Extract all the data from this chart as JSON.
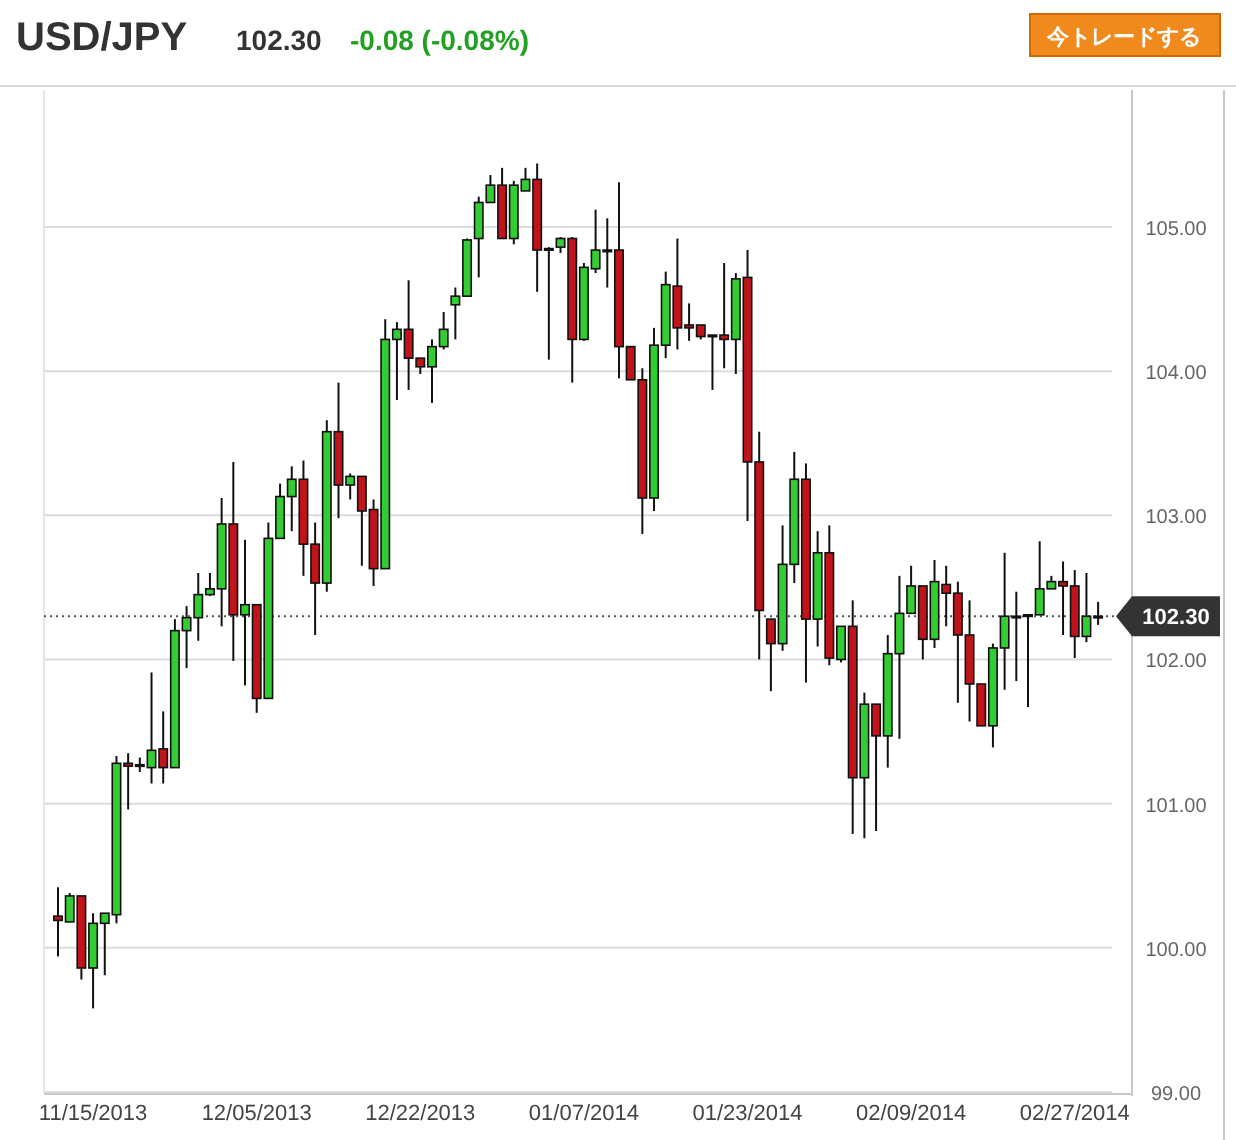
{
  "chart_data": {
    "type": "candlestick",
    "title": "USD/JPY",
    "subtitle": "102.30",
    "annotations": [
      "-0.08 (-0.08%)",
      "今トレードする"
    ],
    "categories": [
      null,
      null,
      null,
      "11/15/2013",
      null,
      null,
      null,
      null,
      null,
      null,
      null,
      null,
      null,
      null,
      null,
      null,
      null,
      "12/05/2013",
      null,
      null,
      null,
      null,
      null,
      null,
      null,
      null,
      null,
      null,
      null,
      null,
      null,
      "12/22/2013",
      null,
      null,
      null,
      null,
      null,
      null,
      null,
      null,
      null,
      null,
      null,
      null,
      null,
      "01/07/2014",
      null,
      null,
      null,
      null,
      null,
      null,
      null,
      null,
      null,
      null,
      null,
      null,
      null,
      "01/23/2014",
      null,
      null,
      null,
      null,
      null,
      null,
      null,
      null,
      null,
      null,
      null,
      null,
      null,
      "02/09/2014",
      null,
      null,
      null,
      null,
      null,
      null,
      null,
      null,
      null,
      null,
      null,
      null,
      null,
      "02/27/2014",
      null,
      null
    ],
    "ohlc": [
      [
        100.22,
        100.42,
        99.94,
        100.19
      ],
      [
        100.18,
        100.38,
        100.18,
        100.36
      ],
      [
        100.36,
        100.36,
        99.78,
        99.86
      ],
      [
        99.86,
        100.24,
        99.58,
        100.17
      ],
      [
        100.17,
        100.24,
        99.81,
        100.24
      ],
      [
        100.23,
        101.33,
        100.17,
        101.28
      ],
      [
        101.28,
        101.35,
        100.96,
        101.26
      ],
      [
        101.26,
        101.32,
        101.22,
        101.27
      ],
      [
        101.25,
        101.91,
        101.14,
        101.37
      ],
      [
        101.38,
        101.64,
        101.14,
        101.25
      ],
      [
        101.25,
        102.28,
        101.25,
        102.2
      ],
      [
        102.2,
        102.37,
        101.94,
        102.29
      ],
      [
        102.29,
        102.6,
        102.13,
        102.45
      ],
      [
        102.45,
        102.6,
        102.44,
        102.49
      ],
      [
        102.49,
        103.12,
        102.23,
        102.94
      ],
      [
        102.94,
        103.37,
        101.99,
        102.31
      ],
      [
        102.31,
        102.83,
        101.82,
        102.38
      ],
      [
        102.38,
        102.38,
        101.63,
        101.73
      ],
      [
        101.73,
        102.95,
        101.73,
        102.84
      ],
      [
        102.84,
        103.22,
        102.84,
        103.13
      ],
      [
        103.13,
        103.34,
        102.89,
        103.25
      ],
      [
        103.25,
        103.38,
        102.58,
        102.8
      ],
      [
        102.8,
        102.95,
        102.17,
        102.53
      ],
      [
        102.53,
        103.66,
        102.47,
        103.58
      ],
      [
        103.58,
        103.92,
        102.98,
        103.21
      ],
      [
        103.21,
        103.29,
        103.11,
        103.27
      ],
      [
        103.27,
        103.27,
        102.65,
        103.03
      ],
      [
        103.04,
        103.11,
        102.51,
        102.63
      ],
      [
        102.63,
        104.36,
        102.63,
        104.22
      ],
      [
        104.22,
        104.34,
        103.8,
        104.29
      ],
      [
        104.29,
        104.63,
        103.87,
        104.09
      ],
      [
        104.09,
        104.09,
        103.98,
        104.03
      ],
      [
        104.03,
        104.22,
        103.78,
        104.17
      ],
      [
        104.17,
        104.41,
        104.15,
        104.29
      ],
      [
        104.46,
        104.58,
        104.22,
        104.52
      ],
      [
        104.52,
        104.92,
        104.52,
        104.91
      ],
      [
        104.92,
        105.21,
        104.65,
        105.17
      ],
      [
        105.17,
        105.36,
        105.17,
        105.29
      ],
      [
        105.29,
        105.41,
        104.92,
        104.92
      ],
      [
        104.92,
        105.32,
        104.88,
        105.29
      ],
      [
        105.25,
        105.41,
        105.25,
        105.33
      ],
      [
        105.33,
        105.44,
        104.55,
        104.84
      ],
      [
        104.84,
        104.86,
        104.08,
        104.85
      ],
      [
        104.86,
        104.93,
        104.82,
        104.92
      ],
      [
        104.92,
        104.93,
        103.92,
        104.22
      ],
      [
        104.22,
        104.75,
        104.21,
        104.72
      ],
      [
        104.71,
        105.12,
        104.68,
        104.84
      ],
      [
        104.84,
        105.06,
        104.58,
        104.84
      ],
      [
        104.84,
        105.31,
        103.95,
        104.17
      ],
      [
        104.17,
        104.17,
        103.94,
        103.94
      ],
      [
        103.94,
        104.02,
        102.87,
        103.12
      ],
      [
        103.12,
        104.3,
        103.03,
        104.18
      ],
      [
        104.18,
        104.69,
        104.09,
        104.6
      ],
      [
        104.59,
        104.92,
        104.15,
        104.3
      ],
      [
        104.32,
        104.47,
        104.21,
        104.3
      ],
      [
        104.32,
        104.32,
        104.22,
        104.24
      ],
      [
        104.25,
        104.25,
        103.87,
        104.25
      ],
      [
        104.25,
        104.75,
        104.02,
        104.22
      ],
      [
        104.22,
        104.68,
        103.98,
        104.64
      ],
      [
        104.65,
        104.84,
        102.96,
        103.37
      ],
      [
        103.37,
        103.58,
        102.0,
        102.34
      ],
      [
        102.28,
        102.28,
        101.78,
        102.11
      ],
      [
        102.11,
        102.93,
        102.06,
        102.66
      ],
      [
        102.66,
        103.44,
        102.53,
        103.25
      ],
      [
        103.25,
        103.36,
        101.84,
        102.28
      ],
      [
        102.28,
        102.89,
        102.09,
        102.74
      ],
      [
        102.74,
        102.93,
        101.96,
        102.01
      ],
      [
        102.0,
        102.23,
        101.98,
        102.23
      ],
      [
        102.23,
        102.41,
        100.79,
        101.18
      ],
      [
        101.18,
        101.77,
        100.76,
        101.69
      ],
      [
        101.69,
        101.69,
        100.81,
        101.47
      ],
      [
        101.47,
        102.17,
        101.25,
        102.04
      ],
      [
        102.04,
        102.58,
        101.45,
        102.32
      ],
      [
        102.32,
        102.65,
        102.32,
        102.51
      ],
      [
        102.51,
        102.51,
        102.0,
        102.14
      ],
      [
        102.14,
        102.69,
        102.08,
        102.54
      ],
      [
        102.52,
        102.65,
        102.23,
        102.46
      ],
      [
        102.46,
        102.54,
        101.7,
        102.17
      ],
      [
        102.17,
        102.41,
        101.57,
        101.83
      ],
      [
        101.83,
        101.83,
        101.54,
        101.54
      ],
      [
        101.54,
        102.11,
        101.39,
        102.08
      ],
      [
        102.08,
        102.74,
        101.79,
        102.3
      ],
      [
        102.3,
        102.47,
        101.85,
        102.3
      ],
      [
        102.31,
        102.31,
        101.67,
        102.31
      ],
      [
        102.31,
        102.82,
        102.31,
        102.49
      ],
      [
        102.49,
        102.58,
        102.49,
        102.54
      ],
      [
        102.54,
        102.68,
        102.17,
        102.51
      ],
      [
        102.51,
        102.62,
        102.01,
        102.16
      ],
      [
        102.16,
        102.6,
        102.12,
        102.3
      ],
      [
        102.3,
        102.4,
        102.24,
        102.3
      ]
    ],
    "ylim": [
      99,
      105.95
    ],
    "yticks": [
      {
        "value": 99,
        "label": "99.00"
      },
      {
        "value": 100,
        "label": "100.00"
      },
      {
        "value": 101,
        "label": "101.00"
      },
      {
        "value": 102,
        "label": "102.00"
      },
      {
        "value": 103,
        "label": "103.00"
      },
      {
        "value": 104,
        "label": "104.00"
      },
      {
        "value": 105,
        "label": "105.00"
      }
    ],
    "grid": "y",
    "ref_lines": [
      {
        "axis": "y",
        "value": 102.3,
        "label": "102.30",
        "line_style": "dotted"
      }
    ]
  }
}
